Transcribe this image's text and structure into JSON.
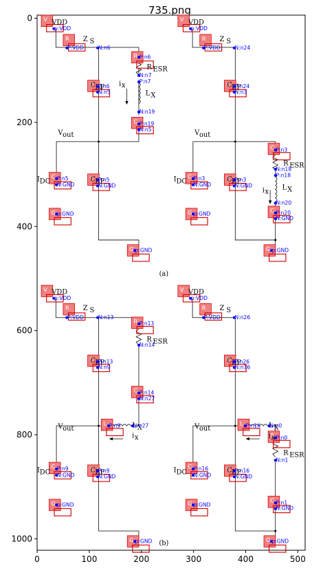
{
  "title": "735.png",
  "axes": {
    "x_ticks": [
      0,
      100,
      200,
      300,
      400,
      500
    ],
    "y_ticks": [
      0,
      200,
      400,
      600,
      800,
      1000
    ],
    "x_range": [
      0,
      514
    ],
    "y_range": [
      1022,
      -6
    ]
  },
  "colors": {
    "box_fill": "#f08080",
    "box_stroke": "#d00000",
    "net_label": "#0000ff",
    "wire": "#000000"
  },
  "captions": [
    {
      "id": "cap-a",
      "text": "(a)",
      "x": 243,
      "y": 495
    },
    {
      "id": "cap-b",
      "text": "(b)",
      "x": 243,
      "y": 1012
    }
  ],
  "component_labels": [
    {
      "text": "VDD",
      "x": 28,
      "y": 12
    },
    {
      "text": "Z",
      "x": 88,
      "y": 44
    },
    {
      "text": "S",
      "x": 101,
      "y": 48
    },
    {
      "text": "R",
      "x": 210,
      "y": 98
    },
    {
      "text": "ESR",
      "x": 222,
      "y": 102
    },
    {
      "text": "C",
      "x": 102,
      "y": 132
    },
    {
      "text": "BP",
      "x": 111,
      "y": 136
    },
    {
      "text": "i",
      "x": 157,
      "y": 130
    },
    {
      "text": "x",
      "x": 162,
      "y": 133
    },
    {
      "text": "L",
      "x": 208,
      "y": 148
    },
    {
      "text": "X",
      "x": 218,
      "y": 152
    },
    {
      "text": "V",
      "x": 40,
      "y": 224
    },
    {
      "text": "out",
      "x": 49,
      "y": 228
    },
    {
      "text": "I",
      "x": 0,
      "y": 313
    },
    {
      "text": "DC",
      "x": 5,
      "y": 317
    },
    {
      "text": "C",
      "x": 102,
      "y": 313
    },
    {
      "text": "BP",
      "x": 111,
      "y": 317
    },
    {
      "text": "VDD",
      "x": 290,
      "y": 12
    },
    {
      "text": "Z",
      "x": 350,
      "y": 44
    },
    {
      "text": "S",
      "x": 363,
      "y": 48
    },
    {
      "text": "C",
      "x": 364,
      "y": 132
    },
    {
      "text": "BP",
      "x": 373,
      "y": 136
    },
    {
      "text": "V",
      "x": 302,
      "y": 224
    },
    {
      "text": "out",
      "x": 311,
      "y": 228
    },
    {
      "text": "R",
      "x": 472,
      "y": 283
    },
    {
      "text": "ESR",
      "x": 484,
      "y": 287
    },
    {
      "text": "I",
      "x": 262,
      "y": 313
    },
    {
      "text": "DC",
      "x": 267,
      "y": 317
    },
    {
      "text": "C",
      "x": 364,
      "y": 313
    },
    {
      "text": "BP",
      "x": 373,
      "y": 317
    },
    {
      "text": "i",
      "x": 432,
      "y": 334
    },
    {
      "text": "x",
      "x": 437,
      "y": 337
    },
    {
      "text": "L",
      "x": 470,
      "y": 329
    },
    {
      "text": "X",
      "x": 480,
      "y": 333
    },
    {
      "text": "VDD",
      "x": 28,
      "y": 530
    },
    {
      "text": "Z",
      "x": 88,
      "y": 561
    },
    {
      "text": "S",
      "x": 101,
      "y": 565
    },
    {
      "text": "R",
      "x": 210,
      "y": 621
    },
    {
      "text": "ESR",
      "x": 222,
      "y": 625
    },
    {
      "text": "C",
      "x": 102,
      "y": 661
    },
    {
      "text": "BP",
      "x": 111,
      "y": 665
    },
    {
      "text": "V",
      "x": 40,
      "y": 788
    },
    {
      "text": "out",
      "x": 49,
      "y": 792
    },
    {
      "text": "L",
      "x": 182,
      "y": 786
    },
    {
      "text": "X",
      "x": 192,
      "y": 790
    },
    {
      "text": "i",
      "x": 182,
      "y": 806
    },
    {
      "text": "x",
      "x": 187,
      "y": 809
    },
    {
      "text": "I",
      "x": 0,
      "y": 872
    },
    {
      "text": "DC",
      "x": 5,
      "y": 876
    },
    {
      "text": "C",
      "x": 102,
      "y": 872
    },
    {
      "text": "BP",
      "x": 111,
      "y": 876
    },
    {
      "text": "VDD",
      "x": 290,
      "y": 530
    },
    {
      "text": "Z",
      "x": 350,
      "y": 561
    },
    {
      "text": "S",
      "x": 363,
      "y": 565
    },
    {
      "text": "C",
      "x": 364,
      "y": 661
    },
    {
      "text": "BP",
      "x": 373,
      "y": 665
    },
    {
      "text": "V",
      "x": 302,
      "y": 788
    },
    {
      "text": "out",
      "x": 311,
      "y": 792
    },
    {
      "text": "L",
      "x": 444,
      "y": 786
    },
    {
      "text": "X",
      "x": 454,
      "y": 790
    },
    {
      "text": "i",
      "x": 444,
      "y": 806
    },
    {
      "text": "x",
      "x": 449,
      "y": 809
    },
    {
      "text": "R",
      "x": 472,
      "y": 839
    },
    {
      "text": "ESR",
      "x": 484,
      "y": 843
    },
    {
      "text": "I",
      "x": 262,
      "y": 872
    },
    {
      "text": "DC",
      "x": 267,
      "y": 876
    },
    {
      "text": "C",
      "x": 364,
      "y": 872
    },
    {
      "text": "BP",
      "x": 373,
      "y": 876
    }
  ],
  "boxes": [
    {
      "letter": "V",
      "x": 8,
      "y": -6
    },
    {
      "letter": "R",
      "x": 50,
      "y": 31
    },
    {
      "letter": "R",
      "x": 181,
      "y": 64
    },
    {
      "letter": "C",
      "x": 97,
      "y": 119
    },
    {
      "letter": "C",
      "x": 181,
      "y": 190
    },
    {
      "letter": "C",
      "x": 23,
      "y": 296
    },
    {
      "letter": "C",
      "x": 97,
      "y": 299
    },
    {
      "letter": "G",
      "x": 23,
      "y": 365
    },
    {
      "letter": "G",
      "x": 173,
      "y": 435
    },
    {
      "letter": "V",
      "x": 270,
      "y": -6
    },
    {
      "letter": "R",
      "x": 312,
      "y": 31
    },
    {
      "letter": "C",
      "x": 359,
      "y": 119
    },
    {
      "letter": "C",
      "x": 443,
      "y": 240
    },
    {
      "letter": "C",
      "x": 285,
      "y": 296
    },
    {
      "letter": "C",
      "x": 359,
      "y": 299
    },
    {
      "letter": "C",
      "x": 443,
      "y": 361
    },
    {
      "letter": "G",
      "x": 285,
      "y": 365
    },
    {
      "letter": "G",
      "x": 435,
      "y": 435
    },
    {
      "letter": "V",
      "x": 8,
      "y": 513
    },
    {
      "letter": "R",
      "x": 50,
      "y": 548
    },
    {
      "letter": "R",
      "x": 181,
      "y": 574
    },
    {
      "letter": "C",
      "x": 97,
      "y": 647
    },
    {
      "letter": "C",
      "x": 181,
      "y": 707
    },
    {
      "letter": "L",
      "x": 123,
      "y": 770
    },
    {
      "letter": "C",
      "x": 23,
      "y": 853
    },
    {
      "letter": "C",
      "x": 97,
      "y": 858
    },
    {
      "letter": "G",
      "x": 23,
      "y": 924
    },
    {
      "letter": "G",
      "x": 173,
      "y": 994
    },
    {
      "letter": "V",
      "x": 270,
      "y": 513
    },
    {
      "letter": "R",
      "x": 312,
      "y": 548
    },
    {
      "letter": "C",
      "x": 359,
      "y": 647
    },
    {
      "letter": "L",
      "x": 385,
      "y": 770
    },
    {
      "letter": "R",
      "x": 443,
      "y": 793
    },
    {
      "letter": "C",
      "x": 285,
      "y": 853
    },
    {
      "letter": "C",
      "x": 359,
      "y": 858
    },
    {
      "letter": "C",
      "x": 443,
      "y": 918
    },
    {
      "letter": "G",
      "x": 285,
      "y": 924
    },
    {
      "letter": "G",
      "x": 435,
      "y": 994
    }
  ],
  "net_labels": [
    {
      "text": "p:VDD",
      "x": 32,
      "y": 20
    },
    {
      "text": "P:VDD",
      "x": 57,
      "y": 57
    },
    {
      "text": "N:n6",
      "x": 116,
      "y": 57
    },
    {
      "text": "P:n6",
      "x": 195,
      "y": 75
    },
    {
      "text": "N:n7",
      "x": 195,
      "y": 110
    },
    {
      "text": "P:n7",
      "x": 195,
      "y": 122
    },
    {
      "text": "N:n19",
      "x": 195,
      "y": 180
    },
    {
      "text": "P:n6",
      "x": 116,
      "y": 131
    },
    {
      "text": "N:n5",
      "x": 116,
      "y": 142
    },
    {
      "text": "P:n19",
      "x": 195,
      "y": 203
    },
    {
      "text": "N:n5",
      "x": 195,
      "y": 214
    },
    {
      "text": "P:n5",
      "x": 37,
      "y": 308
    },
    {
      "text": "N:GND",
      "x": 37,
      "y": 320
    },
    {
      "text": "P:n5",
      "x": 116,
      "y": 311
    },
    {
      "text": "N:GND",
      "x": 116,
      "y": 322
    },
    {
      "text": "p:GND",
      "x": 37,
      "y": 376
    },
    {
      "text": "p:GND",
      "x": 187,
      "y": 446
    },
    {
      "text": "p:VDD",
      "x": 294,
      "y": 20
    },
    {
      "text": "P:VDD",
      "x": 319,
      "y": 57
    },
    {
      "text": "N:n24",
      "x": 378,
      "y": 57
    },
    {
      "text": "P:n24",
      "x": 378,
      "y": 131
    },
    {
      "text": "N:n3",
      "x": 378,
      "y": 142
    },
    {
      "text": "P:n3",
      "x": 457,
      "y": 253
    },
    {
      "text": "N:n18",
      "x": 457,
      "y": 290
    },
    {
      "text": "P:n18",
      "x": 457,
      "y": 302
    },
    {
      "text": "N:n20",
      "x": 457,
      "y": 355
    },
    {
      "text": "P:n3",
      "x": 299,
      "y": 308
    },
    {
      "text": "N:GND",
      "x": 299,
      "y": 320
    },
    {
      "text": "P:n3",
      "x": 378,
      "y": 311
    },
    {
      "text": "N:GND",
      "x": 378,
      "y": 322
    },
    {
      "text": "P:n20",
      "x": 457,
      "y": 374
    },
    {
      "text": "N:GND",
      "x": 457,
      "y": 385
    },
    {
      "text": "p:GND",
      "x": 299,
      "y": 376
    },
    {
      "text": "p:GND",
      "x": 449,
      "y": 446
    },
    {
      "text": "p:VDD",
      "x": 32,
      "y": 538
    },
    {
      "text": "P:VDD",
      "x": 57,
      "y": 575
    },
    {
      "text": "N:n13",
      "x": 116,
      "y": 575
    },
    {
      "text": "P:n13",
      "x": 195,
      "y": 587
    },
    {
      "text": "N:n14",
      "x": 195,
      "y": 628
    },
    {
      "text": "P:n13",
      "x": 116,
      "y": 660
    },
    {
      "text": "N:n9",
      "x": 116,
      "y": 671
    },
    {
      "text": "P:n14",
      "x": 195,
      "y": 720
    },
    {
      "text": "N:n27",
      "x": 195,
      "y": 731
    },
    {
      "text": "P:n9",
      "x": 137,
      "y": 783
    },
    {
      "text": "N:n27",
      "x": 183,
      "y": 783
    },
    {
      "text": "P:n9",
      "x": 37,
      "y": 866
    },
    {
      "text": "N:GND",
      "x": 37,
      "y": 878
    },
    {
      "text": "P:n9",
      "x": 116,
      "y": 870
    },
    {
      "text": "N:GND",
      "x": 116,
      "y": 881
    },
    {
      "text": "p:GND",
      "x": 37,
      "y": 935
    },
    {
      "text": "p:GND",
      "x": 187,
      "y": 1005
    },
    {
      "text": "p:VDD",
      "x": 294,
      "y": 538
    },
    {
      "text": "P:VDD",
      "x": 319,
      "y": 575
    },
    {
      "text": "N:n26",
      "x": 378,
      "y": 575
    },
    {
      "text": "P:n26",
      "x": 378,
      "y": 660
    },
    {
      "text": "N:n16",
      "x": 378,
      "y": 671
    },
    {
      "text": "P:n16",
      "x": 399,
      "y": 783
    },
    {
      "text": "N:n0",
      "x": 445,
      "y": 783
    },
    {
      "text": "P:n0",
      "x": 457,
      "y": 806
    },
    {
      "text": "N:n1",
      "x": 457,
      "y": 849
    },
    {
      "text": "P:n16",
      "x": 299,
      "y": 866
    },
    {
      "text": "N:GND",
      "x": 299,
      "y": 878
    },
    {
      "text": "P:n16",
      "x": 378,
      "y": 870
    },
    {
      "text": "N:GND",
      "x": 378,
      "y": 881
    },
    {
      "text": "P:n1",
      "x": 457,
      "y": 931
    },
    {
      "text": "N:GND",
      "x": 457,
      "y": 942
    },
    {
      "text": "p:GND",
      "x": 299,
      "y": 935
    },
    {
      "text": "p:GND",
      "x": 449,
      "y": 1005
    }
  ]
}
